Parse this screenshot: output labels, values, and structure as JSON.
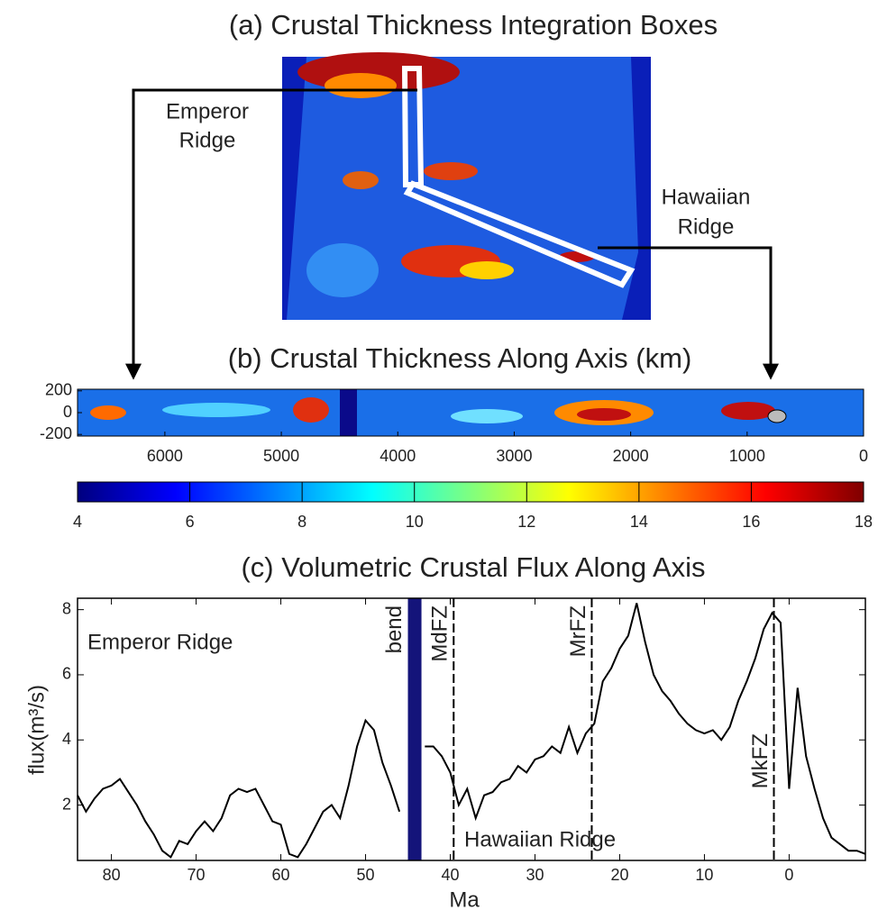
{
  "chart_data": [
    {
      "type": "map",
      "title": "(a) Crustal Thickness Integration Boxes",
      "labels": [
        [
          "Emperor",
          "Ridge"
        ],
        [
          "Hawaiian",
          "Ridge"
        ]
      ]
    },
    {
      "type": "heatmap",
      "title": "(b) Crustal Thickness Along Axis (km)",
      "xlim": [
        6750,
        0
      ],
      "xticks": [
        6000,
        5000,
        4000,
        3000,
        2000,
        1000,
        0
      ],
      "ylim": [
        -215,
        215
      ],
      "yticks": [
        200,
        0,
        -200
      ]
    },
    {
      "type": "colorbar",
      "xlim": [
        4,
        18
      ],
      "xticks": [
        4,
        6,
        8,
        10,
        12,
        14,
        16,
        18
      ],
      "colormap": [
        "#00007f",
        "#0000ff",
        "#007fff",
        "#00ffff",
        "#7fff7f",
        "#ffff00",
        "#ff7f00",
        "#ff0000",
        "#7f0000"
      ]
    },
    {
      "type": "line",
      "title": "(c) Volumetric Crustal Flux Along Axis",
      "xlabel": "Ma",
      "ylabel": "flux(m³/s)",
      "color": "#000000",
      "x": [
        84,
        83,
        82,
        81,
        80,
        79,
        78,
        77,
        76,
        75,
        74,
        73,
        72,
        71,
        70,
        69,
        68,
        67,
        66,
        65,
        64,
        63,
        62,
        61,
        60,
        59,
        58,
        57,
        56,
        55,
        54,
        53,
        52,
        51,
        50,
        49,
        48,
        47,
        46,
        45,
        44,
        43,
        42,
        41,
        40,
        39,
        38,
        37,
        36,
        35,
        34,
        33,
        32,
        31,
        30,
        29,
        28,
        27,
        26,
        25,
        24,
        23,
        22,
        21,
        20,
        19,
        18,
        17,
        16,
        15,
        14,
        13,
        12,
        11,
        10,
        9,
        8,
        7,
        6,
        5,
        4,
        3,
        2,
        1,
        0,
        -1,
        -2,
        -3,
        -4,
        -5,
        -6,
        -7,
        -8,
        -9
      ],
      "values": [
        2.3,
        1.8,
        2.2,
        2.5,
        2.6,
        2.8,
        2.4,
        2.0,
        1.5,
        1.1,
        0.6,
        0.4,
        0.9,
        0.8,
        1.2,
        1.5,
        1.2,
        1.6,
        2.3,
        2.5,
        2.4,
        2.5,
        2.0,
        1.5,
        1.4,
        0.5,
        0.4,
        0.8,
        1.3,
        1.8,
        2.0,
        1.6,
        2.6,
        3.8,
        4.6,
        4.3,
        3.3,
        2.6,
        1.8,
        null,
        null,
        3.8,
        3.8,
        3.5,
        3.0,
        2.0,
        2.5,
        1.6,
        2.3,
        2.4,
        2.7,
        2.8,
        3.2,
        3.0,
        3.4,
        3.5,
        3.8,
        3.6,
        4.4,
        3.6,
        4.2,
        4.5,
        5.8,
        6.2,
        6.8,
        7.2,
        8.2,
        7.0,
        6.0,
        5.5,
        5.2,
        4.8,
        4.5,
        4.3,
        4.2,
        4.3,
        4.0,
        4.4,
        5.2,
        5.8,
        6.5,
        7.4,
        7.9,
        7.6,
        2.5,
        5.6,
        3.5,
        2.5,
        1.6,
        1.0,
        0.8,
        0.6,
        0.6,
        0.5
      ],
      "xlim": [
        84,
        -9
      ],
      "xticks": [
        80,
        70,
        60,
        50,
        40,
        30,
        20,
        10,
        0
      ],
      "ylim": [
        0.3,
        8.35
      ],
      "yticks": [
        2,
        4,
        6,
        8
      ],
      "band": {
        "x": [
          45,
          43.4
        ],
        "label": "bend",
        "color": "#14147a"
      },
      "vlines": [
        {
          "x": 39.6,
          "label": "MdFZ"
        },
        {
          "x": 23.3,
          "label": "MrFZ"
        },
        {
          "x": 1.8,
          "label": "MkFZ"
        }
      ],
      "annotations": [
        "Emperor Ridge",
        "Hawaiian Ridge"
      ]
    }
  ]
}
